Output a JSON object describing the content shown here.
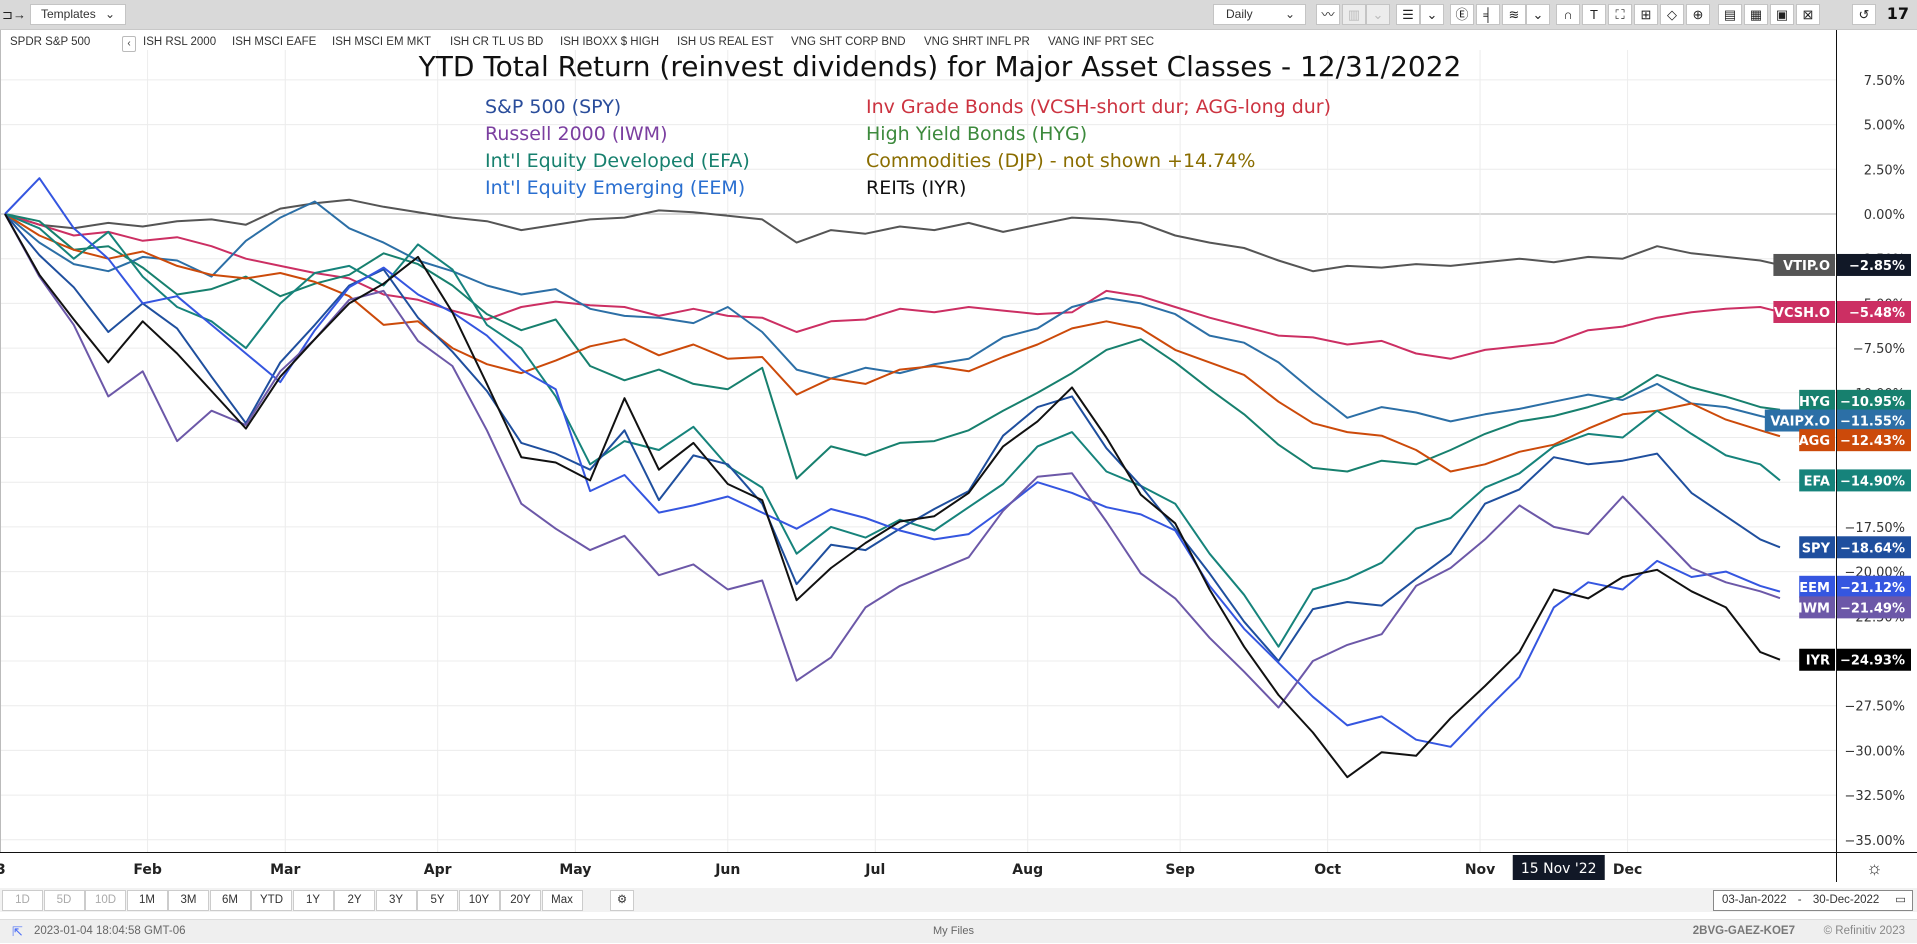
{
  "toolbar": {
    "templates_label": "Templates",
    "interval_label": "Daily",
    "icons": [
      "panel-toggle-icon",
      "line-chart-icon",
      "bar-chart-icon",
      "dropdown-icon",
      "list-icon",
      "dropdown-icon",
      "events-icon",
      "crosshair-icon",
      "studies-icon",
      "dropdown-icon",
      "magnet-icon",
      "text-icon",
      "rectangle-icon",
      "fibonacci-icon",
      "polygon-icon",
      "zoom-icon",
      "add-chart-icon",
      "table-icon",
      "news-icon",
      "compare-icon",
      "reset-icon",
      "tradingview-logo"
    ]
  },
  "symbols": {
    "main": "SPDR S&P 500",
    "comparisons": [
      "ISH RSL 2000",
      "ISH MSCI EAFE",
      "ISH MSCI EM MKT",
      "ISH CR TL US BD",
      "ISH IBOXX $ HIGH",
      "ISH US REAL EST",
      "VNG SHT CORP BND",
      "VNG SHRT INFL PR",
      "VANG INF PRT SEC"
    ]
  },
  "chart_data": {
    "type": "line",
    "title": "YTD Total Return (reinvest dividends) for Major Asset Classes - 12/31/2022",
    "legend": [
      {
        "text": "S&P 500 (SPY)",
        "color": "#2a4d9b"
      },
      {
        "text": "Russell 2000 (IWM)",
        "color": "#7b3fa0"
      },
      {
        "text": "Int'l Equity Developed (EFA)",
        "color": "#17806e"
      },
      {
        "text": "Int'l Equity Emerging (EEM)",
        "color": "#2a6fd0"
      },
      {
        "text": "Inv Grade Bonds (VCSH-short dur; AGG-long dur)",
        "color": "#cc3340"
      },
      {
        "text": "High Yield Bonds (HYG)",
        "color": "#3d8a3d"
      },
      {
        "text": "Commodities (DJP) - not shown +14.74%",
        "color": "#8a6d00"
      },
      {
        "text": "REITs (IYR)",
        "color": "#111111"
      }
    ],
    "xlabel": "",
    "ylabel": "",
    "x_tick_labels": [
      "Feb",
      "Mar",
      "Apr",
      "May",
      "Jun",
      "Jul",
      "Aug",
      "Sep",
      "Oct",
      "Nov",
      "Dec"
    ],
    "x_tick_days": [
      29,
      57,
      88,
      116,
      147,
      177,
      208,
      239,
      269,
      300,
      330
    ],
    "x_range_days": [
      0,
      361
    ],
    "first_tick_partial": "3",
    "crosshair_label": "15 Nov '22",
    "crosshair_day": 316,
    "ylim": [
      -35.6,
      9.5
    ],
    "y_ticks": [
      7.5,
      5,
      2.5,
      0,
      -2.5,
      -5,
      -7.5,
      -10,
      -12.5,
      -15,
      -17.5,
      -20,
      -22.5,
      -25,
      -27.5,
      -30,
      -32.5,
      -35
    ],
    "y_tick_labels": [
      "7.50%",
      "5.00%",
      "2.50%",
      "0.00%",
      "−2.50%",
      "−5.00%",
      "−7.50%",
      "−10.00%",
      "−12.50%",
      "−15.00%",
      "−17.50%",
      "−20.00%",
      "−22.50%",
      "−25.00%",
      "−27.50%",
      "−30.00%",
      "−32.50%",
      "−35.00%"
    ],
    "grid": true,
    "x_days": [
      0,
      7,
      14,
      21,
      28,
      35,
      42,
      49,
      56,
      63,
      70,
      77,
      84,
      91,
      98,
      105,
      112,
      119,
      126,
      133,
      140,
      147,
      154,
      161,
      168,
      175,
      182,
      189,
      196,
      203,
      210,
      217,
      224,
      231,
      238,
      245,
      252,
      259,
      266,
      273,
      280,
      287,
      294,
      301,
      308,
      315,
      322,
      329,
      336,
      343,
      350,
      357,
      361
    ],
    "series": [
      {
        "name": "VTIP.O",
        "color": "#555555",
        "last": "−2.85%",
        "values": [
          0,
          -0.6,
          -0.8,
          -0.5,
          -0.7,
          -0.4,
          -0.3,
          -0.6,
          0.3,
          0.6,
          0.8,
          0.4,
          0.1,
          -0.2,
          -0.4,
          -0.9,
          -0.6,
          -0.3,
          -0.2,
          0.2,
          0.1,
          -0.1,
          -0.3,
          -1.6,
          -0.9,
          -1.1,
          -0.7,
          -0.9,
          -0.5,
          -1.0,
          -0.6,
          -0.2,
          -0.3,
          -0.5,
          -1.2,
          -1.6,
          -1.9,
          -2.6,
          -3.2,
          -2.9,
          -3.0,
          -2.8,
          -2.9,
          -2.7,
          -2.5,
          -2.7,
          -2.4,
          -2.5,
          -1.8,
          -2.2,
          -2.4,
          -2.6,
          -2.85
        ]
      },
      {
        "name": "VCSH.O",
        "color": "#cc2f63",
        "last": "−5.48%",
        "values": [
          0,
          -0.6,
          -1.2,
          -1.0,
          -1.5,
          -1.3,
          -1.8,
          -2.5,
          -2.9,
          -3.3,
          -3.6,
          -4.5,
          -4.8,
          -5.4,
          -5.9,
          -5.2,
          -4.9,
          -5.1,
          -5.2,
          -5.7,
          -5.3,
          -5.7,
          -5.8,
          -6.6,
          -6.0,
          -5.9,
          -5.3,
          -5.5,
          -5.2,
          -5.4,
          -5.6,
          -5.5,
          -4.3,
          -4.6,
          -5.2,
          -5.8,
          -6.3,
          -6.8,
          -6.9,
          -7.3,
          -7.1,
          -7.8,
          -8.1,
          -7.6,
          -7.4,
          -7.2,
          -6.5,
          -6.3,
          -5.8,
          -5.5,
          -5.3,
          -5.2,
          -5.48
        ]
      },
      {
        "name": "HYG",
        "color": "#17806e",
        "last": "−10.95%",
        "values": [
          0,
          -0.4,
          -2.0,
          -1.8,
          -3.0,
          -4.5,
          -4.2,
          -3.5,
          -4.6,
          -3.9,
          -3.4,
          -2.2,
          -2.8,
          -4.0,
          -5.6,
          -6.5,
          -5.9,
          -8.5,
          -9.3,
          -8.7,
          -9.5,
          -9.8,
          -8.6,
          -14.8,
          -13.0,
          -13.5,
          -12.8,
          -12.7,
          -12.1,
          -11.0,
          -10.0,
          -8.9,
          -7.6,
          -7.0,
          -8.3,
          -9.8,
          -11.2,
          -12.9,
          -14.2,
          -14.4,
          -13.8,
          -14.0,
          -13.2,
          -12.3,
          -11.6,
          -11.3,
          -10.8,
          -10.2,
          -9.0,
          -9.7,
          -10.2,
          -10.8,
          -10.95
        ]
      },
      {
        "name": "VAIPX.O",
        "color": "#2c6fa6",
        "last": "−11.55%",
        "values": [
          0,
          -1.6,
          -2.8,
          -3.2,
          -2.4,
          -2.6,
          -3.5,
          -1.5,
          -0.2,
          0.7,
          -0.8,
          -1.6,
          -2.6,
          -3.2,
          -4.0,
          -4.5,
          -4.2,
          -5.3,
          -5.7,
          -5.8,
          -6.1,
          -5.2,
          -6.6,
          -8.7,
          -9.2,
          -8.6,
          -8.9,
          -8.4,
          -8.1,
          -6.9,
          -6.4,
          -5.2,
          -4.7,
          -5.0,
          -5.6,
          -6.8,
          -7.2,
          -8.3,
          -9.9,
          -11.4,
          -10.8,
          -11.1,
          -11.6,
          -11.2,
          -10.9,
          -10.5,
          -10.1,
          -10.4,
          -9.5,
          -10.6,
          -10.8,
          -11.3,
          -11.55
        ]
      },
      {
        "name": "AGG",
        "color": "#cc4a0a",
        "last": "−12.43%",
        "values": [
          0,
          -1.2,
          -2.0,
          -2.5,
          -2.1,
          -2.9,
          -3.4,
          -3.6,
          -3.3,
          -3.8,
          -4.6,
          -6.2,
          -6.0,
          -7.5,
          -8.4,
          -8.9,
          -8.2,
          -7.4,
          -7.0,
          -7.9,
          -7.3,
          -8.1,
          -8.0,
          -10.1,
          -9.2,
          -9.5,
          -8.7,
          -8.5,
          -8.8,
          -8.0,
          -7.3,
          -6.4,
          -6.0,
          -6.4,
          -7.6,
          -8.3,
          -9.0,
          -10.5,
          -11.7,
          -12.2,
          -12.4,
          -13.2,
          -14.4,
          -14.0,
          -13.3,
          -12.9,
          -12.0,
          -11.2,
          -11.0,
          -10.6,
          -11.5,
          -12.1,
          -12.43
        ]
      },
      {
        "name": "EFA",
        "color": "#16837b",
        "last": "−14.90%",
        "values": [
          0,
          -0.8,
          -2.5,
          -1.0,
          -3.5,
          -5.2,
          -6.0,
          -7.5,
          -5.0,
          -3.3,
          -2.9,
          -4.0,
          -1.7,
          -3.1,
          -6.2,
          -7.5,
          -10.2,
          -14.0,
          -12.7,
          -13.2,
          -11.9,
          -14.1,
          -15.3,
          -19.0,
          -17.5,
          -18.1,
          -17.1,
          -17.7,
          -16.4,
          -15.1,
          -13.0,
          -12.2,
          -14.4,
          -15.2,
          -16.2,
          -19.0,
          -21.3,
          -24.2,
          -21.0,
          -20.4,
          -19.5,
          -17.6,
          -17.0,
          -15.3,
          -14.5,
          -13.0,
          -12.3,
          -12.5,
          -11.0,
          -12.3,
          -13.5,
          -14.0,
          -14.9
        ]
      },
      {
        "name": "SPY",
        "color": "#1f4f9e",
        "last": "−18.64%",
        "values": [
          0,
          -2.3,
          -4.1,
          -6.6,
          -5.0,
          -6.4,
          -9.1,
          -11.7,
          -8.3,
          -6.2,
          -4.0,
          -3.1,
          -5.8,
          -7.7,
          -9.9,
          -12.8,
          -13.4,
          -14.3,
          -12.1,
          -16.0,
          -13.5,
          -14.0,
          -16.2,
          -20.7,
          -18.5,
          -18.8,
          -17.6,
          -16.5,
          -15.5,
          -12.4,
          -10.8,
          -10.2,
          -13.1,
          -15.2,
          -17.6,
          -20.1,
          -22.8,
          -25.0,
          -22.1,
          -21.7,
          -21.9,
          -20.4,
          -19.0,
          -16.2,
          -15.4,
          -13.6,
          -14.0,
          -13.8,
          -13.4,
          -15.6,
          -16.9,
          -18.2,
          -18.64
        ]
      },
      {
        "name": "EEM",
        "color": "#3556e0",
        "last": "−21.12%",
        "values": [
          0,
          2.0,
          -0.8,
          -2.5,
          -5.0,
          -4.6,
          -6.2,
          -7.8,
          -9.4,
          -6.5,
          -4.1,
          -3.0,
          -4.5,
          -5.5,
          -6.8,
          -8.7,
          -9.8,
          -15.5,
          -14.6,
          -16.7,
          -16.3,
          -15.8,
          -16.7,
          -17.6,
          -16.5,
          -17.0,
          -17.7,
          -18.2,
          -17.9,
          -16.5,
          -15.0,
          -15.6,
          -16.4,
          -16.8,
          -17.7,
          -20.8,
          -23.2,
          -25.1,
          -27.0,
          -28.6,
          -28.1,
          -29.4,
          -29.8,
          -27.8,
          -25.9,
          -22.0,
          -20.6,
          -21.0,
          -19.4,
          -20.3,
          -20.0,
          -20.8,
          -21.12
        ]
      },
      {
        "name": "IWM",
        "color": "#6c58a8",
        "last": "−21.49%",
        "values": [
          0,
          -3.5,
          -6.2,
          -10.2,
          -8.8,
          -12.7,
          -11.0,
          -11.8,
          -8.8,
          -7.0,
          -4.8,
          -4.3,
          -7.1,
          -8.5,
          -12.1,
          -16.2,
          -17.6,
          -18.8,
          -18.0,
          -20.2,
          -19.6,
          -21.0,
          -20.5,
          -26.1,
          -24.8,
          -22.0,
          -20.8,
          -20.0,
          -19.2,
          -16.6,
          -14.7,
          -14.5,
          -17.2,
          -20.1,
          -21.5,
          -23.7,
          -25.6,
          -27.6,
          -25.0,
          -24.1,
          -23.5,
          -20.8,
          -19.8,
          -18.2,
          -16.3,
          -17.5,
          -17.9,
          -15.8,
          -17.8,
          -19.8,
          -20.6,
          -21.1,
          -21.49
        ]
      },
      {
        "name": "IYR",
        "color": "#111111",
        "last": "−24.93%",
        "values": [
          0,
          -3.4,
          -5.9,
          -8.3,
          -6.0,
          -7.8,
          -9.9,
          -12.0,
          -9.1,
          -7.0,
          -5.0,
          -3.9,
          -2.4,
          -5.5,
          -9.5,
          -13.6,
          -13.9,
          -14.9,
          -10.3,
          -14.3,
          -12.8,
          -15.1,
          -16.0,
          -21.6,
          -19.8,
          -18.4,
          -17.2,
          -16.9,
          -15.6,
          -13.0,
          -11.6,
          -9.7,
          -12.5,
          -15.7,
          -17.3,
          -21.0,
          -24.2,
          -26.9,
          -29.0,
          -31.5,
          -30.1,
          -30.3,
          -28.2,
          -26.4,
          -24.5,
          -21.0,
          -21.5,
          -20.3,
          -19.9,
          -21.1,
          -22.0,
          -24.5,
          -24.93
        ]
      }
    ]
  },
  "current_value": "−2.85%",
  "range_buttons": [
    {
      "label": "1D",
      "enabled": false
    },
    {
      "label": "5D",
      "enabled": false
    },
    {
      "label": "10D",
      "enabled": false
    },
    {
      "label": "1M",
      "enabled": true
    },
    {
      "label": "3M",
      "enabled": true
    },
    {
      "label": "6M",
      "enabled": true
    },
    {
      "label": "YTD",
      "enabled": true
    },
    {
      "label": "1Y",
      "enabled": true
    },
    {
      "label": "2Y",
      "enabled": true
    },
    {
      "label": "3Y",
      "enabled": true
    },
    {
      "label": "5Y",
      "enabled": true
    },
    {
      "label": "10Y",
      "enabled": true
    },
    {
      "label": "20Y",
      "enabled": true
    },
    {
      "label": "Max",
      "enabled": true
    }
  ],
  "date_range": {
    "start": "03-Jan-2022",
    "separator": "-",
    "end": "30-Dec-2022"
  },
  "status": {
    "timestamp": "2023-01-04 18:04:58 GMT-06",
    "center": "My Files",
    "code": "2BVG-GAEZ-KOE7",
    "copyright": "© Refinitiv 2023"
  }
}
